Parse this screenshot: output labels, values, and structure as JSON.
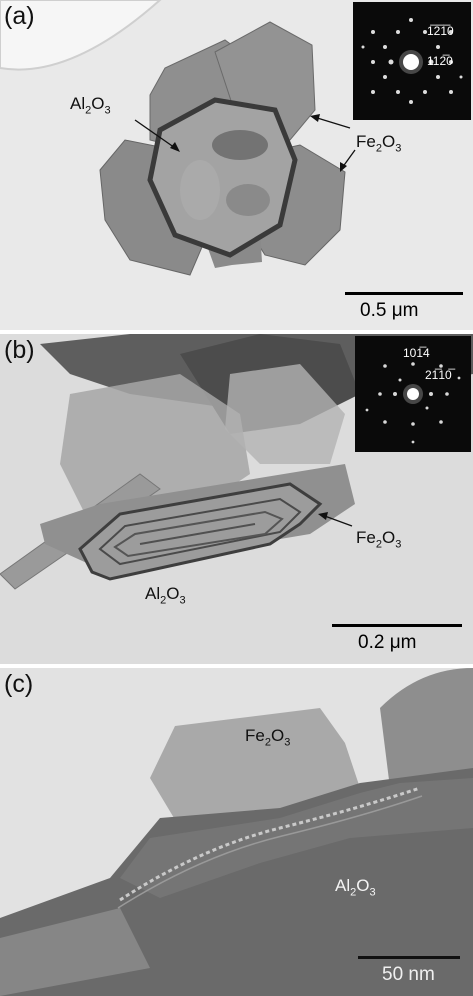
{
  "panels": [
    {
      "label": "(a)",
      "annotations": {
        "al2o3": "Al2O3",
        "fe2o3": "Fe2O3"
      },
      "diffraction_indices": [
        "1210 (bar 1, bar 1)",
        "1120 (bar 2)"
      ],
      "index_display": [
        {
          "text": "1̅2̅1̅0",
          "plain": "1210"
        },
        {
          "text": "112̅0",
          "plain": "1120"
        }
      ],
      "scale_bar": "0.5 μm"
    },
    {
      "label": "(b)",
      "annotations": {
        "al2o3": "Al2O3",
        "fe2o3": "Fe2O3"
      },
      "index_display": [
        {
          "text": "101̅4",
          "plain": "1014"
        },
        {
          "text": "21̅10̅",
          "plain": "2110"
        }
      ],
      "scale_bar": "0.2 μm"
    },
    {
      "label": "(c)",
      "annotations": {
        "al2o3": "Al2O3",
        "fe2o3": "Fe2O3"
      },
      "scale_bar": "50 nm"
    }
  ],
  "colors": {
    "background_gray": "#e8e8e8",
    "particle_gray": "#8c8c8c",
    "dark_gray": "#5a5a5a",
    "inset_black": "#0a0a0a"
  }
}
